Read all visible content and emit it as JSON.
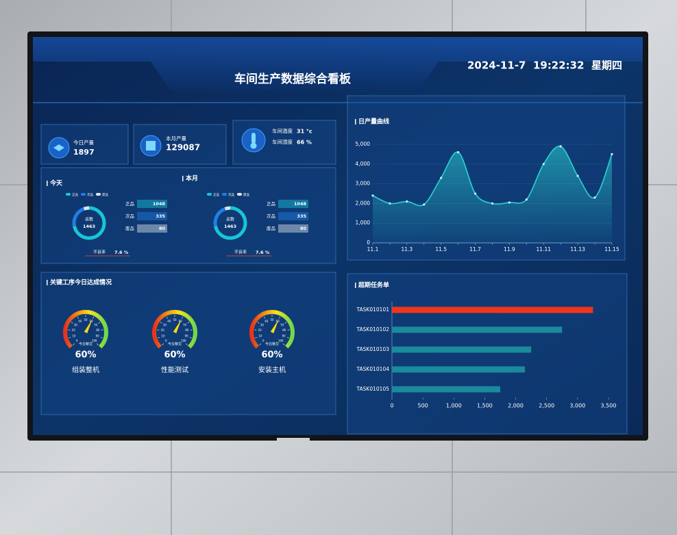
{
  "header": {
    "title": "车间生产数据综合看板",
    "datetime": "2024-11-7  19:22:32  星期四"
  },
  "kpis": [
    {
      "label": "今日产量",
      "value": 1897
    },
    {
      "label": "本月产量",
      "value": 129087
    }
  ],
  "environment": [
    {
      "label": "车间温度",
      "value": "31 °c"
    },
    {
      "label": "车间湿度",
      "value": "66 %"
    }
  ],
  "chart_data": [
    {
      "type": "donut",
      "title": "今天",
      "categories": [
        "正品",
        "次品",
        "废品"
      ],
      "values": [
        1048,
        335,
        80
      ],
      "colors": [
        "#17c6d6",
        "#1f7fe6",
        "#dfe6ee"
      ],
      "center_label": "总数",
      "total": 1463,
      "rate_label": "不良率",
      "rate": "7.6 %"
    },
    {
      "type": "donut",
      "title": "本月",
      "categories": [
        "正品",
        "次品",
        "废品"
      ],
      "values": [
        1048,
        335,
        80
      ],
      "colors": [
        "#17c6d6",
        "#1f7fe6",
        "#dfe6ee"
      ],
      "center_label": "总数",
      "total": 1463,
      "rate_label": "不良率",
      "rate": "7.6 %"
    },
    {
      "type": "gauge",
      "title": "关键工序今日达成情况",
      "categories": [
        "组装整机",
        "性能测试",
        "安装主机"
      ],
      "values": [
        60,
        60,
        60
      ],
      "value_labels": [
        "60%",
        "60%",
        "60%"
      ],
      "center_label": "今日移交",
      "color": "#f5d915",
      "ylim": [
        0,
        100
      ],
      "yticks": [
        0,
        10,
        20,
        30,
        40,
        50,
        60,
        70,
        80,
        90,
        100
      ]
    },
    {
      "type": "line",
      "title": "日产量曲线",
      "categories": [
        "11.1",
        null,
        "11.3",
        null,
        "11.5",
        null,
        "11.7",
        null,
        "11.9",
        null,
        "11.11",
        null,
        "11.13",
        null,
        "11.15"
      ],
      "values": [
        2400,
        2000,
        2100,
        1950,
        3300,
        4600,
        2500,
        2000,
        2050,
        2200,
        4000,
        4900,
        3400,
        2300,
        4500
      ],
      "color": "#2ad3d0",
      "ylim": [
        0,
        5000
      ],
      "yticks": [
        0,
        {
          "value": 1000,
          "label": "1,000"
        },
        {
          "value": 2000,
          "label": "2,000"
        },
        {
          "value": 3000,
          "label": "3,000"
        },
        {
          "value": 4000,
          "label": "4,000"
        },
        {
          "value": 5000,
          "label": "5,000"
        }
      ],
      "grid": true
    },
    {
      "type": "hbar",
      "title": "超期任务单",
      "categories": [
        "TASK010101",
        "TASK010102",
        "TASK010103",
        "TASK010104",
        "TASK010105"
      ],
      "values": [
        3250,
        2750,
        2250,
        2150,
        1750
      ],
      "colors": [
        "#f0361a",
        "#1a8a9c",
        "#1a8a9c",
        "#1a8a9c",
        "#1a8a9c"
      ],
      "xlim": [
        0,
        3500
      ],
      "xticks": [
        0,
        500,
        {
          "value": 1000,
          "label": "1,000"
        },
        {
          "value": 1500,
          "label": "1,500"
        },
        {
          "value": 2000,
          "label": "2,000"
        },
        {
          "value": 2500,
          "label": "2,500"
        },
        {
          "value": 3000,
          "label": "3,000"
        },
        {
          "value": 3500,
          "label": "3,500"
        }
      ]
    }
  ]
}
